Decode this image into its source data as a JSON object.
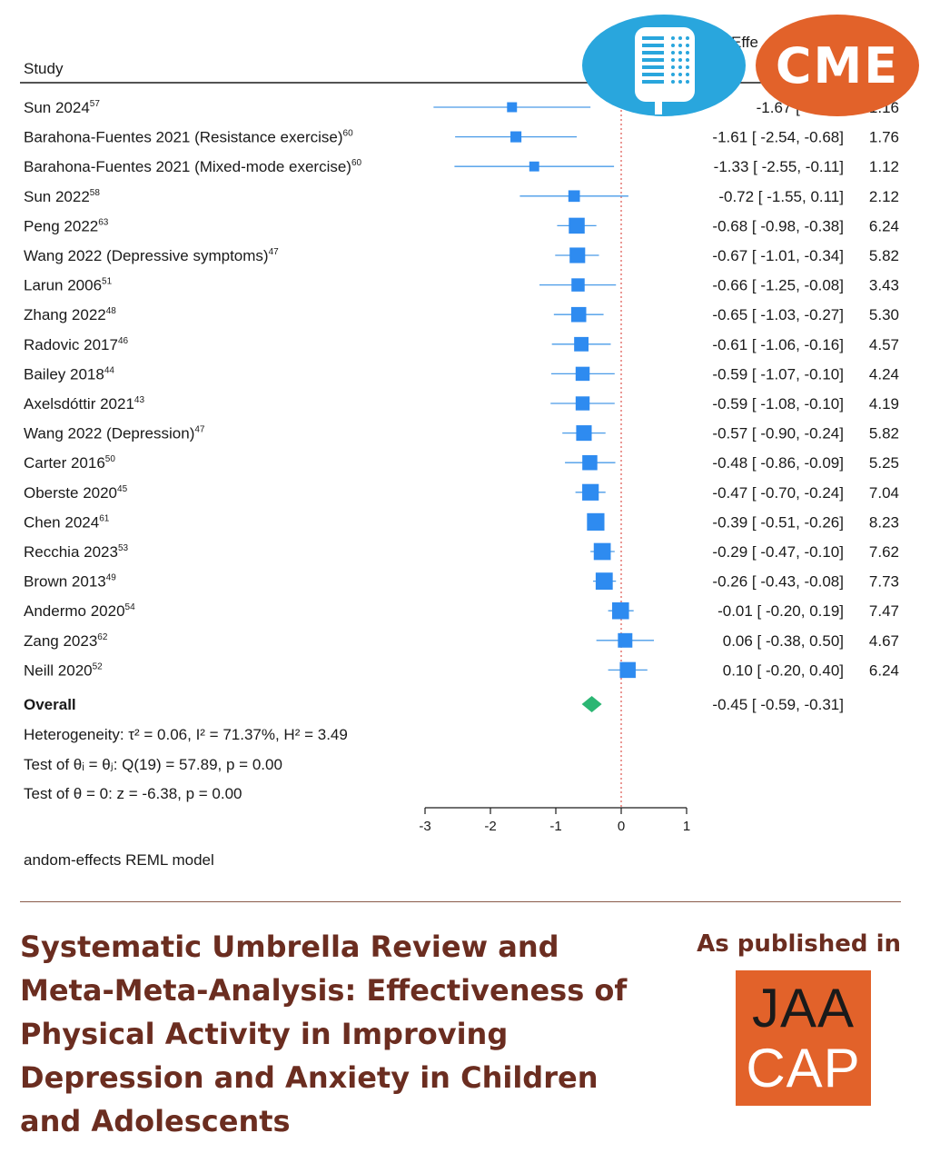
{
  "header": {
    "study": "Study",
    "effect_label_partial": "Effe"
  },
  "chart_data": {
    "type": "forest",
    "studies": [
      {
        "name": "Sun 2024",
        "ref": "57",
        "est": -1.67,
        "lo": -2.87,
        "hi": -0.47,
        "weight": 1.16,
        "est_text": "-1.67 [ -2.87,",
        "weight_text": "1.16"
      },
      {
        "name": "Barahona-Fuentes 2021 (Resistance exercise)",
        "ref": "60",
        "est": -1.61,
        "lo": -2.54,
        "hi": -0.68,
        "weight": 1.76,
        "est_text": "-1.61 [ -2.54,  -0.68]",
        "weight_text": "1.76"
      },
      {
        "name": "Barahona-Fuentes 2021 (Mixed-mode exercise)",
        "ref": "60",
        "est": -1.33,
        "lo": -2.55,
        "hi": -0.11,
        "weight": 1.12,
        "est_text": "-1.33 [ -2.55,  -0.11]",
        "weight_text": "1.12"
      },
      {
        "name": "Sun 2022",
        "ref": "58",
        "est": -0.72,
        "lo": -1.55,
        "hi": 0.11,
        "weight": 2.12,
        "est_text": "-0.72 [ -1.55,   0.11]",
        "weight_text": "2.12"
      },
      {
        "name": "Peng 2022",
        "ref": "63",
        "est": -0.68,
        "lo": -0.98,
        "hi": -0.38,
        "weight": 6.24,
        "est_text": "-0.68 [ -0.98,  -0.38]",
        "weight_text": "6.24"
      },
      {
        "name": "Wang 2022 (Depressive symptoms)",
        "ref": "47",
        "est": -0.67,
        "lo": -1.01,
        "hi": -0.34,
        "weight": 5.82,
        "est_text": "-0.67 [ -1.01,  -0.34]",
        "weight_text": "5.82"
      },
      {
        "name": "Larun 2006",
        "ref": "51",
        "est": -0.66,
        "lo": -1.25,
        "hi": -0.08,
        "weight": 3.43,
        "est_text": "-0.66 [ -1.25,  -0.08]",
        "weight_text": "3.43"
      },
      {
        "name": "Zhang 2022",
        "ref": "48",
        "est": -0.65,
        "lo": -1.03,
        "hi": -0.27,
        "weight": 5.3,
        "est_text": "-0.65 [ -1.03,  -0.27]",
        "weight_text": "5.30"
      },
      {
        "name": "Radovic 2017",
        "ref": "46",
        "est": -0.61,
        "lo": -1.06,
        "hi": -0.16,
        "weight": 4.57,
        "est_text": "-0.61 [ -1.06,  -0.16]",
        "weight_text": "4.57"
      },
      {
        "name": "Bailey 2018",
        "ref": "44",
        "est": -0.59,
        "lo": -1.07,
        "hi": -0.1,
        "weight": 4.24,
        "est_text": "-0.59 [ -1.07,  -0.10]",
        "weight_text": "4.24"
      },
      {
        "name": "Axelsdóttir 2021",
        "ref": "43",
        "est": -0.59,
        "lo": -1.08,
        "hi": -0.1,
        "weight": 4.19,
        "est_text": "-0.59 [ -1.08,  -0.10]",
        "weight_text": "4.19"
      },
      {
        "name": "Wang 2022 (Depression)",
        "ref": "47",
        "est": -0.57,
        "lo": -0.9,
        "hi": -0.24,
        "weight": 5.82,
        "est_text": "-0.57 [ -0.90,  -0.24]",
        "weight_text": "5.82"
      },
      {
        "name": "Carter 2016",
        "ref": "50",
        "est": -0.48,
        "lo": -0.86,
        "hi": -0.09,
        "weight": 5.25,
        "est_text": "-0.48 [ -0.86,  -0.09]",
        "weight_text": "5.25"
      },
      {
        "name": "Oberste 2020",
        "ref": "45",
        "est": -0.47,
        "lo": -0.7,
        "hi": -0.24,
        "weight": 7.04,
        "est_text": "-0.47 [ -0.70,  -0.24]",
        "weight_text": "7.04"
      },
      {
        "name": "Chen 2024",
        "ref": "61",
        "est": -0.39,
        "lo": -0.51,
        "hi": -0.26,
        "weight": 8.23,
        "est_text": "-0.39 [ -0.51,  -0.26]",
        "weight_text": "8.23"
      },
      {
        "name": "Recchia 2023",
        "ref": "53",
        "est": -0.29,
        "lo": -0.47,
        "hi": -0.1,
        "weight": 7.62,
        "est_text": "-0.29 [ -0.47,  -0.10]",
        "weight_text": "7.62"
      },
      {
        "name": "Brown 2013",
        "ref": "49",
        "est": -0.26,
        "lo": -0.43,
        "hi": -0.08,
        "weight": 7.73,
        "est_text": "-0.26 [ -0.43,  -0.08]",
        "weight_text": "7.73"
      },
      {
        "name": "Andermo 2020",
        "ref": "54",
        "est": -0.01,
        "lo": -0.2,
        "hi": 0.19,
        "weight": 7.47,
        "est_text": "-0.01 [ -0.20,   0.19]",
        "weight_text": "7.47"
      },
      {
        "name": "Zang 2023",
        "ref": "62",
        "est": 0.06,
        "lo": -0.38,
        "hi": 0.5,
        "weight": 4.67,
        "est_text": "0.06 [ -0.38,   0.50]",
        "weight_text": "4.67"
      },
      {
        "name": "Neill 2020",
        "ref": "52",
        "est": 0.1,
        "lo": -0.2,
        "hi": 0.4,
        "weight": 6.24,
        "est_text": "0.10 [ -0.20,   0.40]",
        "weight_text": "6.24"
      }
    ],
    "overall": {
      "label": "Overall",
      "est": -0.45,
      "lo": -0.59,
      "hi": -0.31,
      "est_text": "-0.45 [ -0.59,  -0.31]"
    },
    "heterogeneity": "Heterogeneity: τ² = 0.06, I² = 71.37%, H² = 3.49",
    "test_thetas": "Test of θᵢ = θⱼ: Q(19) = 57.89, p = 0.00",
    "test_zero": "Test of θ = 0: z = -6.38, p = 0.00",
    "model_note": "Random-effects REML model",
    "model_note_visible": "andom-effects REML model",
    "xlim": [
      -3,
      1
    ],
    "xticks": [
      "-3",
      "-2",
      "-1",
      "0",
      "1"
    ],
    "colors": {
      "marker": "#2e8bf0",
      "line": "#4a9be8",
      "overall": "#2bb673",
      "null_line": "#e0605a"
    }
  },
  "footer": {
    "title": "Systematic Umbrella Review and Meta-Meta-Analysis: Effectiveness of Physical Activity in Improving Depression and Anxiety in Children and Adolescents",
    "published_label": "As published in",
    "journal_logo": {
      "line1": "JAA",
      "line2": "CAP",
      "color": "#e2622a"
    }
  },
  "badges": {
    "podcast_icon": "podcast-microphone-icon",
    "cme_label": "CME",
    "podcast_color": "#29a6dd",
    "cme_color": "#e2622a"
  }
}
